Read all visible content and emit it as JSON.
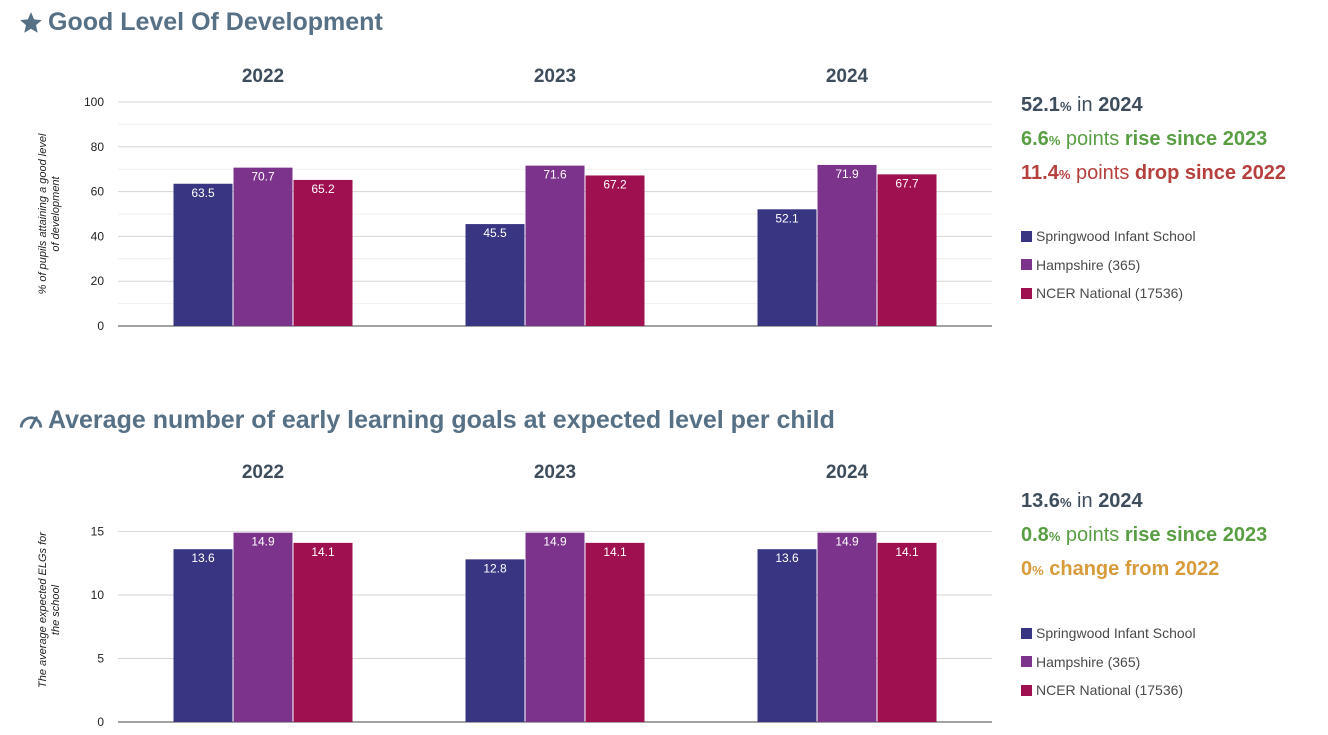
{
  "sections": [
    {
      "title": "Good Level Of Development",
      "icon": "star-icon",
      "stats": [
        {
          "value": "52.1",
          "unit": "%",
          "mid": " in ",
          "tail": "2024",
          "color": "#3e4d5c"
        },
        {
          "value": "6.6",
          "unit": "%",
          "mid": " points ",
          "tail": "rise since 2023",
          "color": "#5a9e44"
        },
        {
          "value": "11.4",
          "unit": "%",
          "mid": " points ",
          "tail": "drop since 2022",
          "color": "#b5403e"
        }
      ]
    },
    {
      "title": "Average number of early learning goals at expected level per child",
      "icon": "gauge-icon",
      "stats": [
        {
          "value": "13.6",
          "unit": "%",
          "mid": " in ",
          "tail": "2024",
          "color": "#3e4d5c"
        },
        {
          "value": "0.8",
          "unit": "%",
          "mid": " points ",
          "tail": "rise since 2023",
          "color": "#5a9e44"
        },
        {
          "value": "0",
          "unit": "%",
          "mid": " ",
          "tail": "change from 2022",
          "color": "#d79b3c"
        }
      ]
    }
  ],
  "legend": [
    {
      "name": "Springwood Infant School",
      "color": "#383583"
    },
    {
      "name": "Hampshire (365)",
      "color": "#7b338b"
    },
    {
      "name": "NCER National (17536)",
      "color": "#9e104f"
    }
  ],
  "chart_data": [
    {
      "type": "bar",
      "categories": [
        "2022",
        "2023",
        "2024"
      ],
      "ylabel": "% of pupils attaining a good level of development",
      "ylim": [
        0,
        100
      ],
      "yticks": [
        0,
        20,
        40,
        60,
        80,
        100
      ],
      "series": [
        {
          "name": "Springwood Infant School",
          "values": [
            63.5,
            45.5,
            52.1
          ]
        },
        {
          "name": "Hampshire (365)",
          "values": [
            70.7,
            71.6,
            71.9
          ]
        },
        {
          "name": "NCER National (17536)",
          "values": [
            65.2,
            67.2,
            67.7
          ]
        }
      ]
    },
    {
      "type": "bar",
      "categories": [
        "2022",
        "2023",
        "2024"
      ],
      "ylabel": "The average expected ELGs for the school",
      "ylim": [
        0,
        17
      ],
      "yticks": [
        0,
        5,
        10,
        15
      ],
      "series": [
        {
          "name": "Springwood Infant School",
          "values": [
            13.6,
            12.8,
            13.6
          ]
        },
        {
          "name": "Hampshire (365)",
          "values": [
            14.9,
            14.9,
            14.9
          ]
        },
        {
          "name": "NCER National (17536)",
          "values": [
            14.1,
            14.1,
            14.1
          ]
        }
      ]
    }
  ]
}
